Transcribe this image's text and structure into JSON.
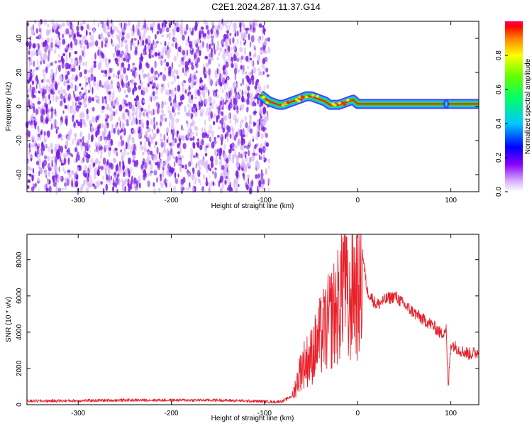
{
  "title": "C2E1.2024.287.11.37.G14",
  "colors": {
    "snr_line": "#e8202a",
    "scatter_purple": "#7a1be8",
    "scatter_light": "#d8b8f8",
    "band_green": "#22dd33",
    "band_red": "#ff1e1e",
    "band_cyan": "#19c0ee",
    "band_blue": "#3030ff"
  },
  "chart_data": [
    {
      "type": "heatmap",
      "xlabel": "Height of straight line (km)",
      "ylabel": "Frequency (Hz)",
      "xlim": [
        -355,
        130
      ],
      "ylim": [
        -50,
        50
      ],
      "x_ticks": [
        -300,
        -200,
        -100,
        0,
        100
      ],
      "x_tick_labels": [
        "-300",
        "-200",
        "-100",
        "0",
        "100"
      ],
      "y_ticks": [
        -40,
        -20,
        0,
        20,
        40
      ],
      "y_tick_labels": [
        "-40",
        "-20",
        "0",
        "20",
        "40"
      ],
      "noise_region_x": [
        -355,
        -95
      ],
      "signal_trace": {
        "x": [
          -105,
          -100,
          -95,
          -90,
          -85,
          -80,
          -75,
          -70,
          -65,
          -60,
          -55,
          -50,
          -45,
          -40,
          -35,
          -30,
          -25,
          -20,
          -15,
          -10,
          -5,
          0,
          10,
          20,
          40,
          60,
          80,
          90,
          95,
          100,
          110,
          120,
          130
        ],
        "y": [
          7,
          5,
          3,
          2,
          1,
          1,
          2,
          3,
          4,
          5,
          6,
          6,
          5,
          4,
          3,
          1,
          1,
          1,
          2,
          3,
          4,
          1.5,
          1.5,
          1.5,
          1.5,
          1.5,
          1.5,
          1.5,
          1.5,
          1.5,
          1.5,
          1.5,
          1.5
        ]
      },
      "colorbar": {
        "label": "Normalized spectral amplitude",
        "range": [
          0,
          1
        ],
        "ticks": [
          0.0,
          0.2,
          0.4,
          0.6,
          0.8
        ],
        "tick_labels": [
          "0.0",
          "0.2",
          "0.4",
          "0.6",
          "0.8"
        ]
      },
      "grid": false
    },
    {
      "type": "line",
      "xlabel": "Height of straight line (km)",
      "ylabel": "SNR (10 * v/v)",
      "xlim": [
        -355,
        130
      ],
      "ylim": [
        0,
        9400
      ],
      "x_ticks": [
        -300,
        -200,
        -100,
        0,
        100
      ],
      "x_tick_labels": [
        "-300",
        "-200",
        "-100",
        "0",
        "100"
      ],
      "y_ticks": [
        0,
        2000,
        4000,
        6000,
        8000
      ],
      "y_tick_labels": [
        "0",
        "2000",
        "4000",
        "6000",
        "8000"
      ],
      "series": [
        {
          "x": [
            -355,
            -300,
            -250,
            -200,
            -150,
            -100,
            -90,
            -80,
            -70,
            -60,
            -50,
            -40,
            -30,
            -20,
            -14,
            -10,
            -5,
            0,
            5,
            10,
            20,
            30,
            40,
            50,
            60,
            70,
            80,
            90,
            95,
            97,
            100,
            110,
            120,
            130
          ],
          "y": [
            200,
            220,
            250,
            250,
            250,
            180,
            150,
            200,
            500,
            2400,
            3000,
            4200,
            5200,
            6200,
            9200,
            5000,
            8000,
            6600,
            8500,
            6300,
            5500,
            5800,
            6000,
            5500,
            5100,
            4700,
            4400,
            3900,
            4200,
            800,
            3400,
            3000,
            2800,
            2900
          ]
        }
      ],
      "grid": false
    }
  ]
}
